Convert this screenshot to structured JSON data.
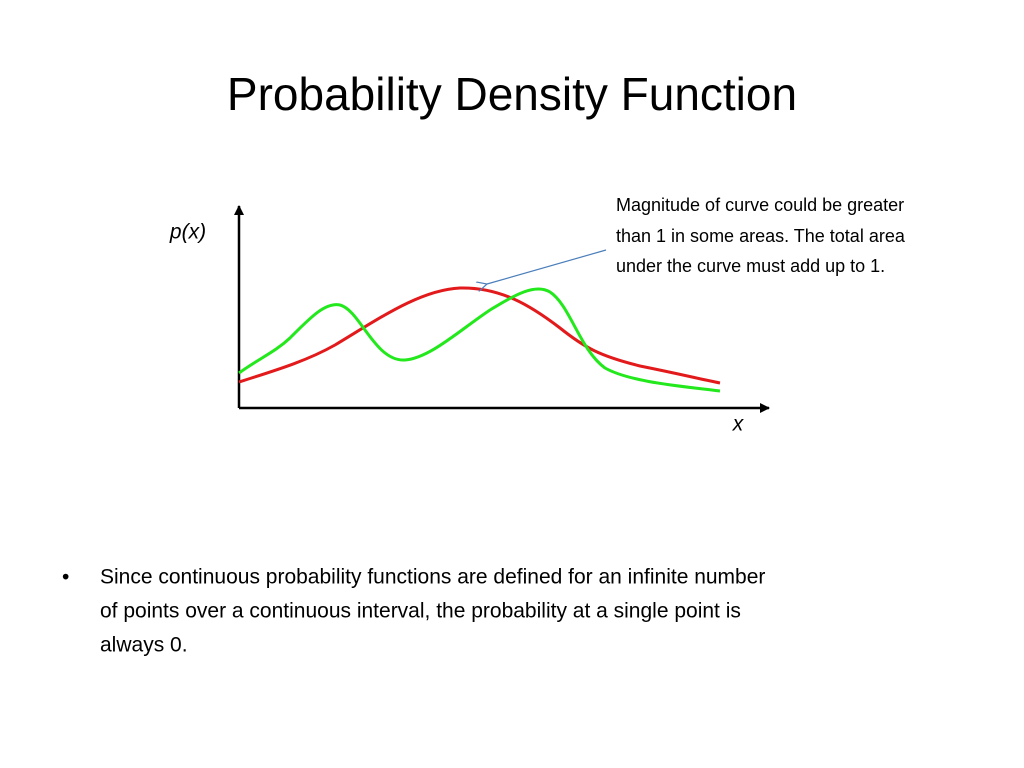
{
  "header": {
    "title": "Probability Density Function"
  },
  "diagram": {
    "y_axis_label": "p(x)",
    "x_axis_label": "x",
    "annotation": [
      "Magnitude of curve could be greater",
      "than 1 in some areas.  The total area",
      "under the curve must add up to 1."
    ]
  },
  "bullets": [
    {
      "marker": "•",
      "lines": [
        "Since continuous probability functions are defined for an infinite number",
        "of points over a continuous interval, the probability at a single point is",
        "always 0."
      ]
    }
  ]
}
